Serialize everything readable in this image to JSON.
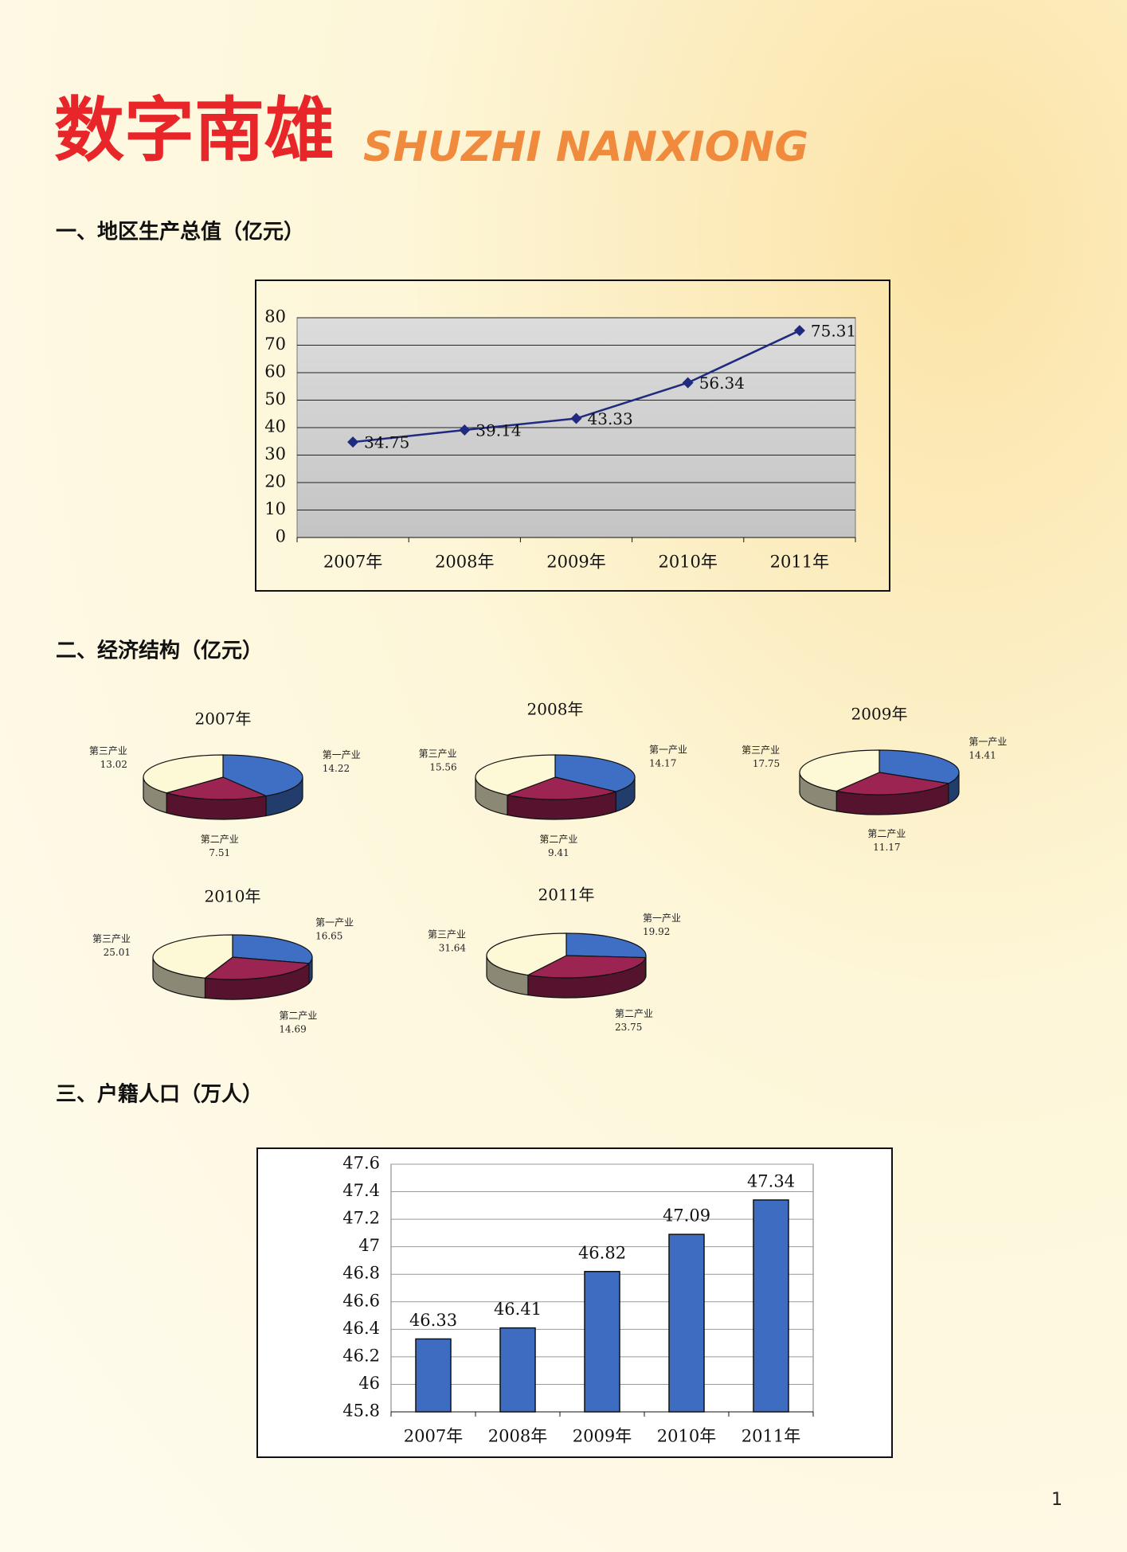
{
  "title": "数字南雄",
  "subtitle": "SHUZHI NANXIONG",
  "sections": [
    "一、地区生产总值（亿元）",
    "二、经济结构（亿元）",
    "三、户籍人口（万人）"
  ],
  "page_number": "1",
  "chart_data": [
    {
      "type": "line",
      "categories": [
        "2007年",
        "2008年",
        "2009年",
        "2010年",
        "2011年"
      ],
      "values": [
        34.75,
        39.14,
        43.33,
        56.34,
        75.31
      ],
      "color": "#1f2a80",
      "ylim": [
        0,
        80
      ],
      "yticks": [
        0,
        10,
        20,
        30,
        40,
        50,
        60,
        70,
        80
      ],
      "grid": true
    },
    {
      "type": "pie",
      "title": "2007年",
      "categories": [
        "第一产业",
        "第二产业",
        "第三产业"
      ],
      "values": [
        14.22,
        7.51,
        13.02
      ],
      "colors": [
        "#3f6fc4",
        "#9b2452",
        "#fdf8d6"
      ]
    },
    {
      "type": "pie",
      "title": "2008年",
      "categories": [
        "第一产业",
        "第二产业",
        "第三产业"
      ],
      "values": [
        14.17,
        9.41,
        15.56
      ],
      "colors": [
        "#3f6fc4",
        "#9b2452",
        "#fdf8d6"
      ]
    },
    {
      "type": "pie",
      "title": "2009年",
      "categories": [
        "第一产业",
        "第二产业",
        "第三产业"
      ],
      "values": [
        14.41,
        11.17,
        17.75
      ],
      "colors": [
        "#3f6fc4",
        "#9b2452",
        "#fdf8d6"
      ]
    },
    {
      "type": "pie",
      "title": "2010年",
      "categories": [
        "第一产业",
        "第二产业",
        "第三产业"
      ],
      "values": [
        16.65,
        14.69,
        25.01
      ],
      "colors": [
        "#3f6fc4",
        "#9b2452",
        "#fdf8d6"
      ]
    },
    {
      "type": "pie",
      "title": "2011年",
      "categories": [
        "第一产业",
        "第二产业",
        "第三产业"
      ],
      "values": [
        19.92,
        23.75,
        31.64
      ],
      "colors": [
        "#3f6fc4",
        "#9b2452",
        "#fdf8d6"
      ]
    },
    {
      "type": "bar",
      "categories": [
        "2007年",
        "2008年",
        "2009年",
        "2010年",
        "2011年"
      ],
      "values": [
        46.33,
        46.41,
        46.82,
        47.09,
        47.34
      ],
      "color": "#3d6cc0",
      "ylim": [
        45.8,
        47.6
      ],
      "yticks": [
        45.8,
        46,
        46.2,
        46.4,
        46.6,
        46.8,
        47,
        47.2,
        47.4,
        47.6
      ],
      "grid": true
    }
  ]
}
